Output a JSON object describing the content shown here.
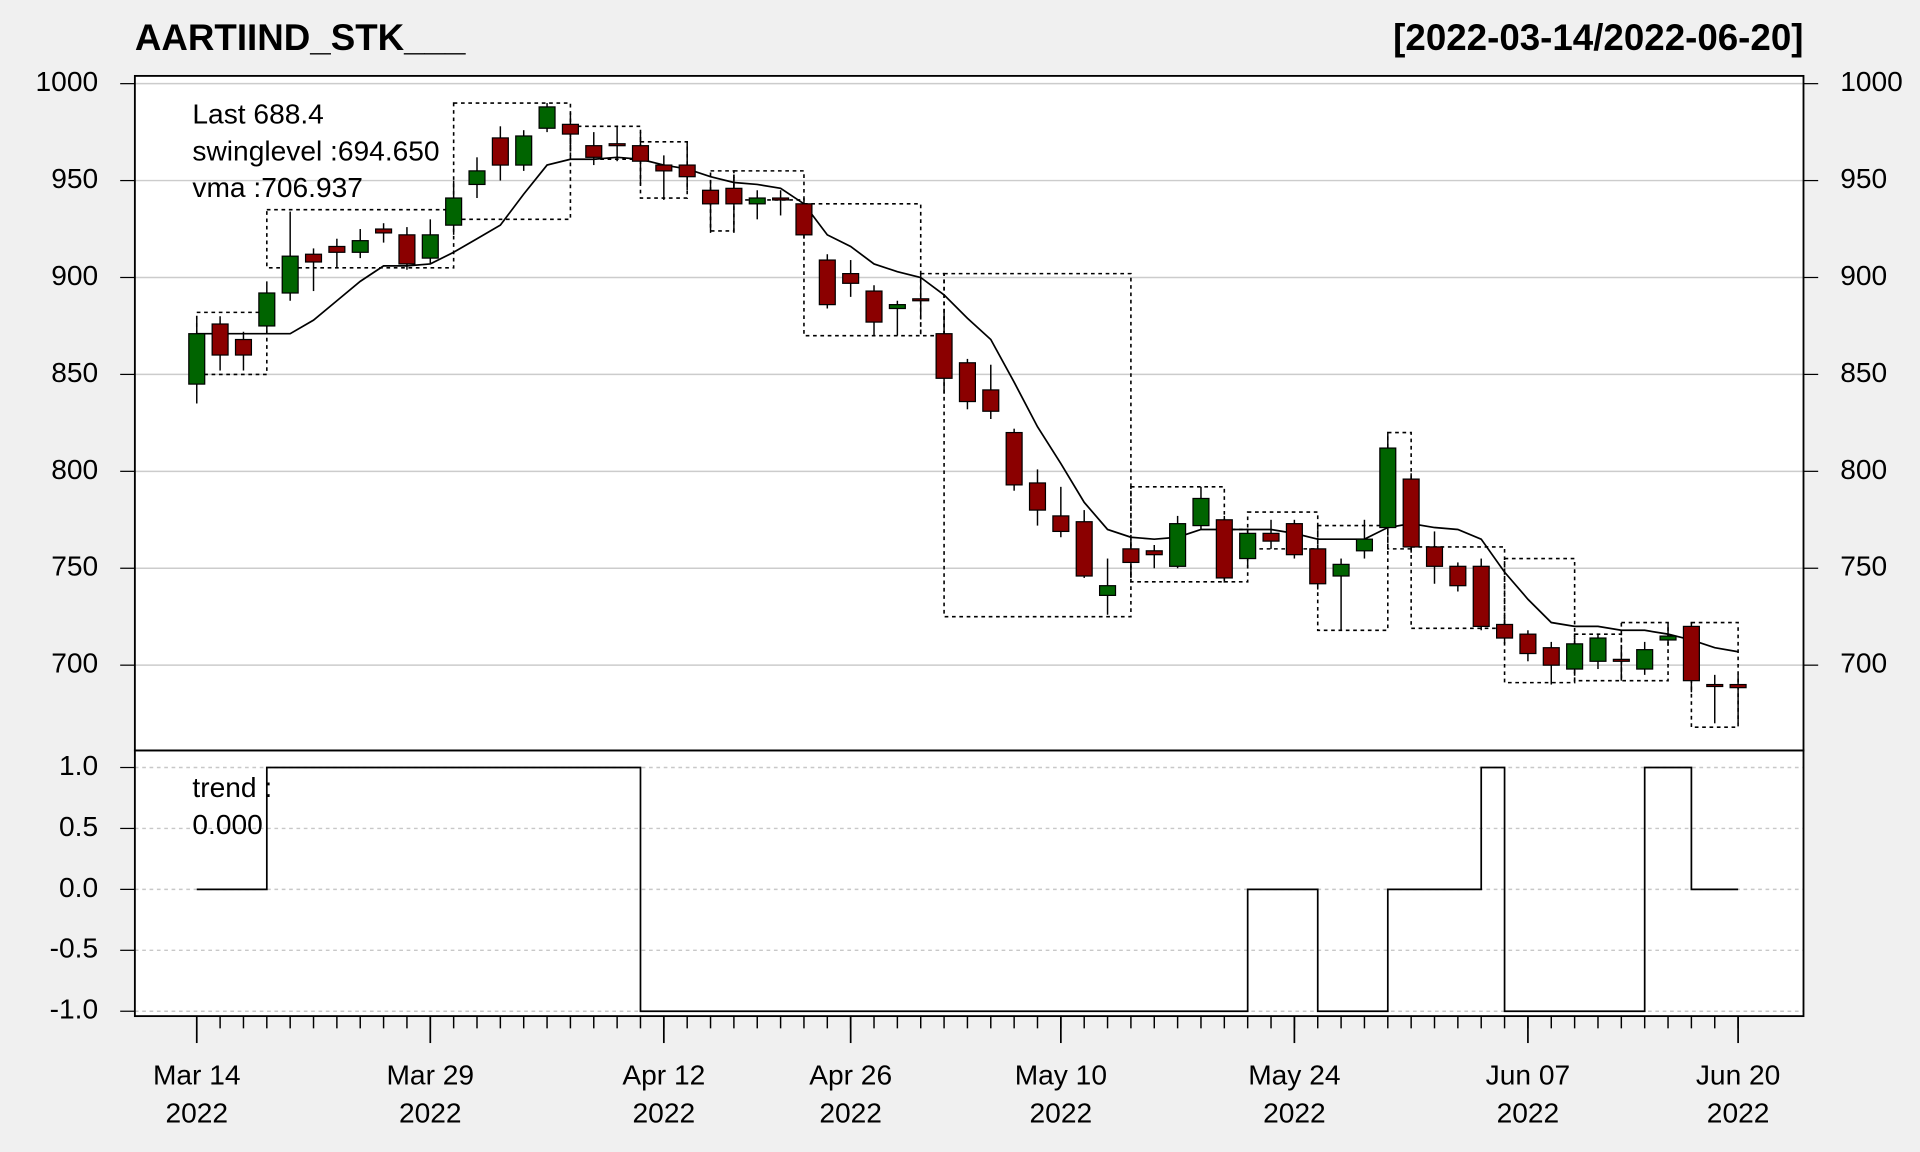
{
  "chart_data": [
    {
      "type": "candlestick",
      "title": "AARTIIND_STK___",
      "subtitle": "[2022-03-14/2022-06-20]",
      "x": [
        "2022-03-14",
        "2022-03-15",
        "2022-03-16",
        "2022-03-17",
        "2022-03-21",
        "2022-03-22",
        "2022-03-23",
        "2022-03-24",
        "2022-03-25",
        "2022-03-28",
        "2022-03-29",
        "2022-03-30",
        "2022-03-31",
        "2022-04-01",
        "2022-04-04",
        "2022-04-05",
        "2022-04-06",
        "2022-04-07",
        "2022-04-08",
        "2022-04-11",
        "2022-04-12",
        "2022-04-13",
        "2022-04-18",
        "2022-04-19",
        "2022-04-20",
        "2022-04-21",
        "2022-04-22",
        "2022-04-25",
        "2022-04-26",
        "2022-04-27",
        "2022-04-28",
        "2022-04-29",
        "2022-05-02",
        "2022-05-04",
        "2022-05-05",
        "2022-05-06",
        "2022-05-09",
        "2022-05-10",
        "2022-05-11",
        "2022-05-12",
        "2022-05-13",
        "2022-05-16",
        "2022-05-17",
        "2022-05-18",
        "2022-05-19",
        "2022-05-20",
        "2022-05-23",
        "2022-05-24",
        "2022-05-25",
        "2022-05-26",
        "2022-05-27",
        "2022-05-30",
        "2022-05-31",
        "2022-06-01",
        "2022-06-02",
        "2022-06-03",
        "2022-06-06",
        "2022-06-07",
        "2022-06-08",
        "2022-06-09",
        "2022-06-10",
        "2022-06-13",
        "2022-06-14",
        "2022-06-15",
        "2022-06-16",
        "2022-06-17",
        "2022-06-20"
      ],
      "open": [
        845,
        876,
        868,
        875,
        892,
        912,
        916,
        913,
        925,
        922,
        910,
        927,
        948,
        972,
        958,
        977,
        979,
        968,
        969,
        968,
        958,
        958,
        945,
        946,
        938,
        941,
        938,
        909,
        902,
        893,
        884,
        889,
        871,
        856,
        842,
        820,
        794,
        777,
        774,
        736,
        760,
        759,
        751,
        772,
        775,
        755,
        768,
        773,
        760,
        746,
        759,
        771,
        796,
        761,
        751,
        751,
        721,
        716,
        709,
        698,
        702,
        703,
        698,
        713,
        720,
        690,
        690
      ],
      "high": [
        880,
        880,
        872,
        898,
        934,
        915,
        920,
        925,
        928,
        926,
        930,
        950,
        962,
        978,
        976,
        990,
        985,
        975,
        978,
        975,
        963,
        970,
        950,
        953,
        945,
        945,
        941,
        912,
        909,
        896,
        888,
        902,
        882,
        858,
        855,
        822,
        801,
        792,
        780,
        755,
        765,
        762,
        777,
        792,
        777,
        770,
        775,
        775,
        762,
        755,
        775,
        820,
        799,
        769,
        753,
        755,
        725,
        718,
        712,
        714,
        716,
        708,
        712,
        722,
        722,
        695,
        695
      ],
      "low": [
        835,
        852,
        852,
        872,
        888,
        893,
        905,
        910,
        918,
        904,
        907,
        922,
        941,
        950,
        955,
        975,
        965,
        958,
        960,
        948,
        940,
        945,
        923,
        923,
        930,
        932,
        920,
        884,
        890,
        870,
        870,
        880,
        840,
        832,
        827,
        790,
        772,
        766,
        745,
        726,
        745,
        750,
        750,
        770,
        743,
        750,
        760,
        755,
        739,
        718,
        755,
        768,
        758,
        742,
        738,
        718,
        711,
        702,
        690,
        696,
        698,
        692,
        695,
        710,
        686,
        670,
        670
      ],
      "close": [
        871,
        860,
        860,
        892,
        911,
        908,
        913,
        919,
        923,
        907,
        922,
        941,
        955,
        958,
        973,
        988,
        974,
        962,
        968,
        960,
        955,
        952,
        938,
        938,
        941,
        940,
        922,
        886,
        897,
        877,
        886,
        888,
        848,
        836,
        831,
        793,
        780,
        769,
        746,
        741,
        753,
        757,
        773,
        786,
        745,
        768,
        764,
        757,
        742,
        752,
        765,
        812,
        761,
        751,
        741,
        720,
        714,
        706,
        700,
        711,
        714,
        702,
        708,
        715,
        692,
        689,
        688.4
      ],
      "up_color": "#006400",
      "down_color": "#8b0000",
      "series": [
        {
          "name": "vma",
          "color": "#000000",
          "values": [
            871,
            871,
            871,
            871,
            871,
            878,
            888,
            898,
            906,
            906,
            907,
            913,
            920,
            927,
            943,
            958,
            961,
            961,
            962,
            961,
            958,
            956,
            952,
            949,
            948,
            946,
            938,
            922,
            916,
            907,
            903,
            900,
            891,
            879,
            868,
            846,
            823,
            804,
            784,
            770,
            766,
            765,
            766,
            770,
            770,
            770,
            770,
            768,
            765,
            765,
            765,
            771,
            773,
            771,
            770,
            765,
            748,
            734,
            722,
            720,
            720,
            718,
            718,
            716,
            713,
            709,
            706.937
          ]
        }
      ],
      "swing_boxes": [
        {
          "start": "2022-03-14",
          "end": "2022-03-17",
          "low": 850,
          "high": 882
        },
        {
          "start": "2022-03-17",
          "end": "2022-03-30",
          "low": 905,
          "high": 935
        },
        {
          "start": "2022-03-30",
          "end": "2022-04-06",
          "low": 930,
          "high": 990
        },
        {
          "start": "2022-04-06",
          "end": "2022-04-11",
          "low": 961,
          "high": 978
        },
        {
          "start": "2022-04-11",
          "end": "2022-04-13",
          "low": 941,
          "high": 970
        },
        {
          "start": "2022-04-18",
          "end": "2022-04-19",
          "low": 924,
          "high": 955
        },
        {
          "start": "2022-04-19",
          "end": "2022-04-22",
          "low": 940,
          "high": 955
        },
        {
          "start": "2022-04-22",
          "end": "2022-04-29",
          "low": 870,
          "high": 938
        },
        {
          "start": "2022-04-29",
          "end": "2022-05-02",
          "low": 870,
          "high": 902
        },
        {
          "start": "2022-05-02",
          "end": "2022-05-13",
          "low": 725,
          "high": 902
        },
        {
          "start": "2022-05-13",
          "end": "2022-05-19",
          "low": 743,
          "high": 792
        },
        {
          "start": "2022-05-19",
          "end": "2022-05-20",
          "low": 743,
          "high": 770
        },
        {
          "start": "2022-05-20",
          "end": "2022-05-25",
          "low": 760,
          "high": 779
        },
        {
          "start": "2022-05-25",
          "end": "2022-05-30",
          "low": 718,
          "high": 772
        },
        {
          "start": "2022-05-30",
          "end": "2022-05-31",
          "low": 760,
          "high": 820
        },
        {
          "start": "2022-05-31",
          "end": "2022-06-06",
          "low": 719,
          "high": 761
        },
        {
          "start": "2022-06-06",
          "end": "2022-06-09",
          "low": 691,
          "high": 755
        },
        {
          "start": "2022-06-09",
          "end": "2022-06-13",
          "low": 692,
          "high": 716
        },
        {
          "start": "2022-06-13",
          "end": "2022-06-15",
          "low": 692,
          "high": 722
        },
        {
          "start": "2022-06-16",
          "end": "2022-06-20",
          "low": 668,
          "high": 722
        }
      ],
      "annotations": {
        "last": "Last 688.4",
        "swinglevel": "swinglevel :694.650",
        "vma": "vma :706.937"
      },
      "last_color": "#8b0000",
      "ylim": [
        656,
        1004
      ],
      "yticks": [
        700,
        750,
        800,
        850,
        900,
        950,
        1000
      ],
      "xticks": [
        {
          "value": "2022-03-14",
          "label": "Mar 14",
          "sublabel": "2022"
        },
        {
          "value": "2022-03-29",
          "label": "Mar 29",
          "sublabel": "2022"
        },
        {
          "value": "2022-04-12",
          "label": "Apr 12",
          "sublabel": "2022"
        },
        {
          "value": "2022-04-26",
          "label": "Apr 26",
          "sublabel": "2022"
        },
        {
          "value": "2022-05-10",
          "label": "May 10",
          "sublabel": "2022"
        },
        {
          "value": "2022-05-24",
          "label": "May 24",
          "sublabel": "2022"
        },
        {
          "value": "2022-06-07",
          "label": "Jun 07",
          "sublabel": "2022"
        },
        {
          "value": "2022-06-20",
          "label": "Jun 20",
          "sublabel": "2022"
        }
      ],
      "grid": true
    },
    {
      "type": "step",
      "series": [
        {
          "name": "trend",
          "color": "#000000",
          "values": [
            0,
            0,
            0,
            1,
            1,
            1,
            1,
            1,
            1,
            1,
            1,
            1,
            1,
            1,
            1,
            1,
            1,
            1,
            1,
            -1,
            -1,
            -1,
            -1,
            -1,
            -1,
            -1,
            -1,
            -1,
            -1,
            -1,
            -1,
            -1,
            -1,
            -1,
            -1,
            -1,
            -1,
            -1,
            -1,
            -1,
            -1,
            -1,
            -1,
            -1,
            -1,
            0,
            0,
            0,
            -1,
            -1,
            -1,
            0,
            0,
            0,
            0,
            1,
            -1,
            -1,
            -1,
            -1,
            -1,
            -1,
            1,
            1,
            0,
            0,
            0
          ]
        }
      ],
      "annotations": {
        "label": "trend :",
        "value": "0.000"
      },
      "ylim": [
        -1.04,
        1.14
      ],
      "yticks": [
        {
          "value": -1,
          "label": "-1.0"
        },
        {
          "value": -0.5,
          "label": "-0.5"
        },
        {
          "value": 0,
          "label": "0.0"
        },
        {
          "value": 0.5,
          "label": "0.5"
        },
        {
          "value": 1,
          "label": "1.0"
        }
      ],
      "grid": true
    }
  ]
}
